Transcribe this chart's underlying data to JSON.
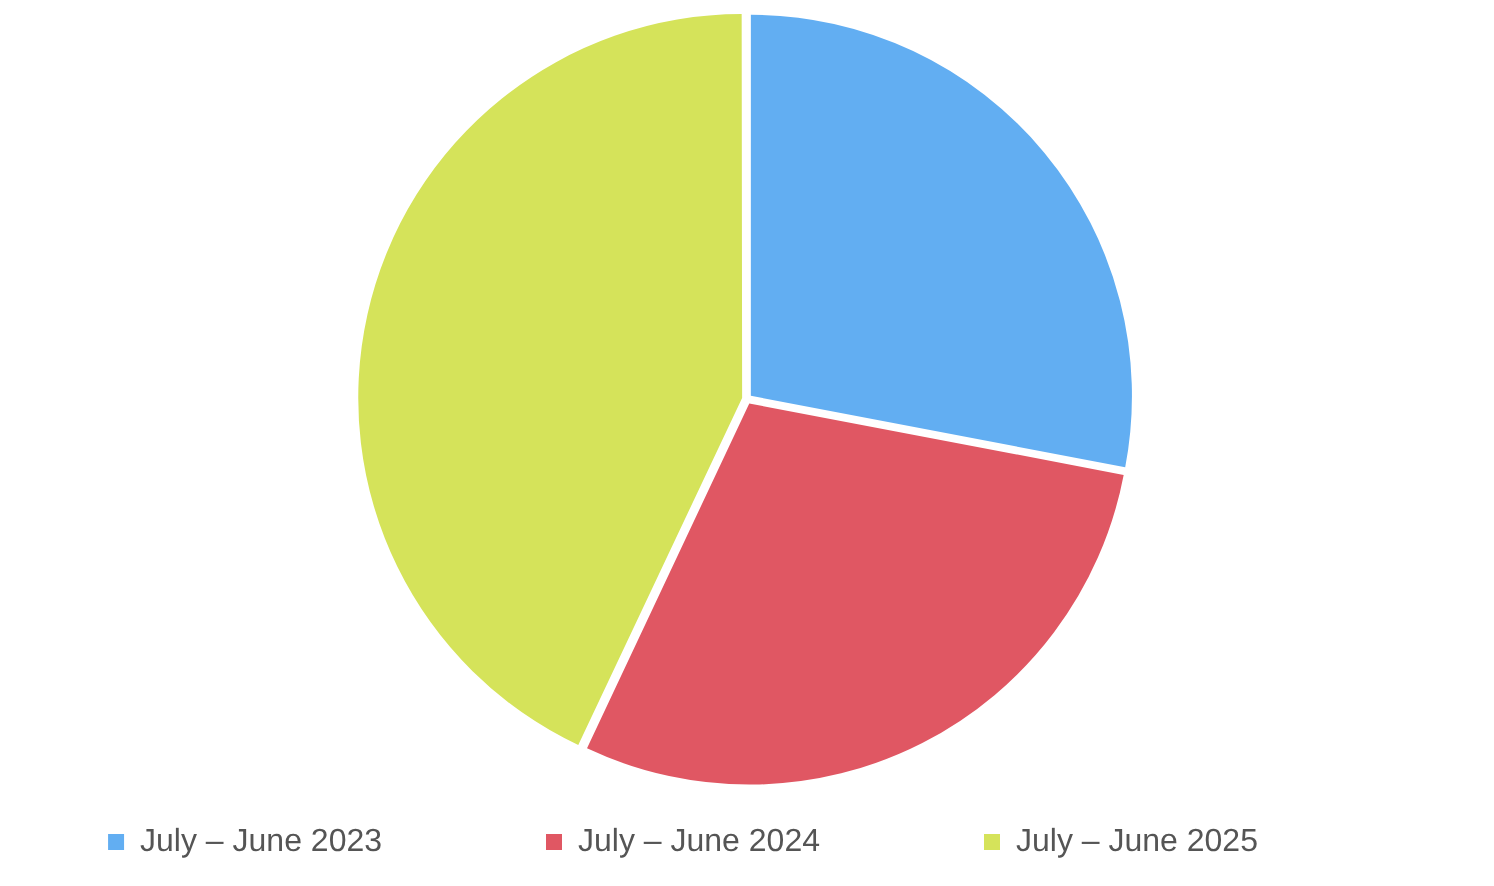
{
  "chart_data": {
    "type": "pie",
    "categories": [
      "July – June 2023",
      "July – June 2024",
      "July – June 2025"
    ],
    "values": [
      28,
      29,
      43
    ],
    "colors": [
      "#62aef2",
      "#e05763",
      "#d5e35a"
    ],
    "legend": "bottom"
  }
}
